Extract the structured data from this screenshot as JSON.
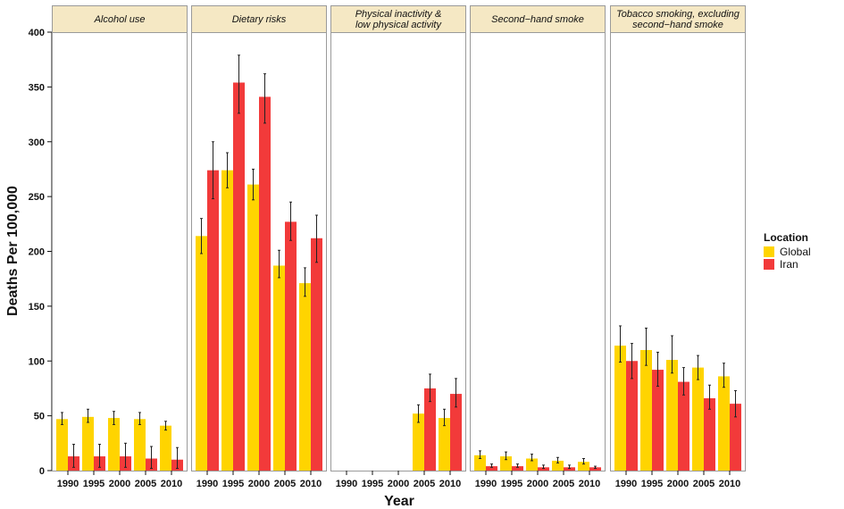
{
  "chart_data": {
    "type": "bar",
    "ylabel": "Deaths Per 100,000",
    "xlabel": "Year",
    "ylim": [
      0,
      400
    ],
    "yticks": [
      0,
      50,
      100,
      150,
      200,
      250,
      300,
      350,
      400
    ],
    "categories": [
      "1990",
      "1995",
      "2000",
      "2005",
      "2010"
    ],
    "legend": {
      "title": "Location",
      "position": "right",
      "entries": [
        {
          "name": "Global",
          "color": "#FFD400"
        },
        {
          "name": "Iran",
          "color": "#F23A3A"
        }
      ]
    },
    "colors": {
      "strip_bg": "#F5E8C4",
      "border": "#9A9A9A",
      "error_bar": "#222222"
    },
    "panels": [
      {
        "title": [
          "Alcohol use"
        ],
        "series": [
          {
            "name": "Global",
            "values": [
              47,
              49,
              48,
              47,
              41
            ],
            "lower": [
              42,
              44,
              42,
              42,
              37
            ],
            "upper": [
              53,
              56,
              54,
              53,
              45
            ]
          },
          {
            "name": "Iran",
            "values": [
              13,
              13,
              13,
              11,
              10
            ],
            "lower": [
              3,
              3,
              3,
              2,
              2
            ],
            "upper": [
              24,
              24,
              25,
              22,
              21
            ]
          }
        ]
      },
      {
        "title": [
          "Dietary risks"
        ],
        "series": [
          {
            "name": "Global",
            "values": [
              214,
              274,
              261,
              187,
              171
            ],
            "lower": [
              198,
              258,
              247,
              176,
              159
            ],
            "upper": [
              230,
              290,
              275,
              201,
              185
            ]
          },
          {
            "name": "Iran",
            "values": [
              274,
              354,
              341,
              227,
              212
            ],
            "lower": [
              248,
              326,
              317,
              210,
              190
            ],
            "upper": [
              300,
              379,
              362,
              245,
              233
            ]
          }
        ]
      },
      {
        "title": [
          "Physical inactivity &",
          "low physical activity"
        ],
        "series": [
          {
            "name": "Global",
            "values": [
              null,
              null,
              null,
              52,
              48
            ],
            "lower": [
              null,
              null,
              null,
              44,
              41
            ],
            "upper": [
              null,
              null,
              null,
              60,
              56
            ]
          },
          {
            "name": "Iran",
            "values": [
              null,
              null,
              null,
              75,
              70
            ],
            "lower": [
              null,
              null,
              null,
              63,
              58
            ],
            "upper": [
              null,
              null,
              null,
              88,
              84
            ]
          }
        ]
      },
      {
        "title": [
          "Second−hand smoke"
        ],
        "series": [
          {
            "name": "Global",
            "values": [
              14,
              13,
              11,
              9,
              8
            ],
            "lower": [
              11,
              10,
              9,
              7,
              6
            ],
            "upper": [
              18,
              17,
              15,
              12,
              11
            ]
          },
          {
            "name": "Iran",
            "values": [
              4,
              4,
              3,
              3,
              3
            ],
            "lower": [
              3,
              3,
              2,
              2,
              2
            ],
            "upper": [
              6,
              6,
              5,
              5,
              4
            ]
          }
        ]
      },
      {
        "title": [
          "Tobacco smoking, excluding",
          "second−hand smoke"
        ],
        "series": [
          {
            "name": "Global",
            "values": [
              114,
              110,
              101,
              94,
              86
            ],
            "lower": [
              99,
              96,
              89,
              83,
              76
            ],
            "upper": [
              132,
              130,
              123,
              105,
              98
            ]
          },
          {
            "name": "Iran",
            "values": [
              100,
              92,
              81,
              66,
              61
            ],
            "lower": [
              84,
              77,
              69,
              56,
              49
            ],
            "upper": [
              116,
              108,
              94,
              78,
              73
            ]
          }
        ]
      }
    ]
  }
}
